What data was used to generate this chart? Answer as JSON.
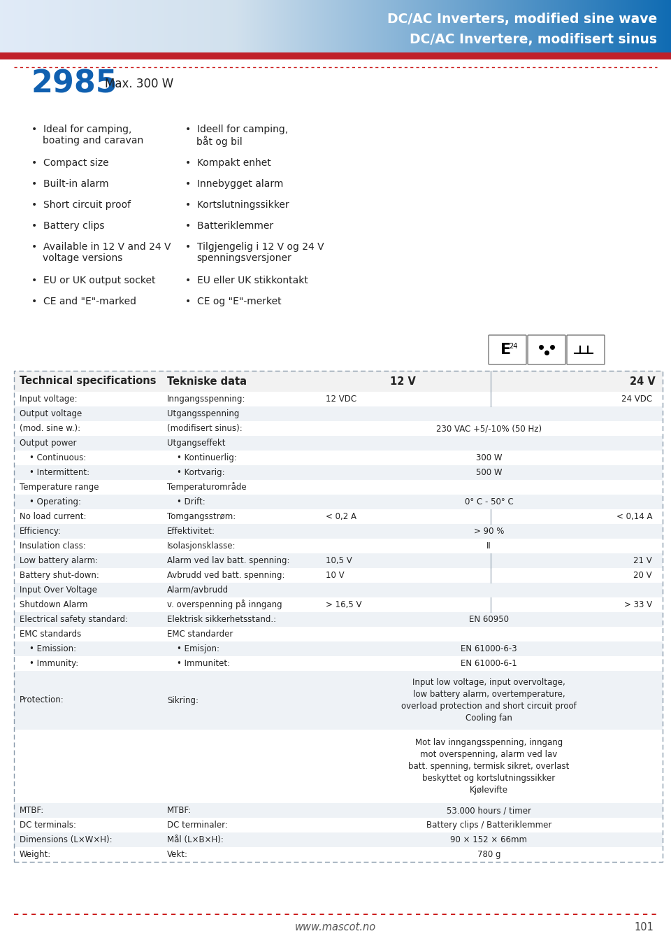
{
  "header_title1": "DC/AC Inverters, modified sine wave",
  "header_title2": "DC/AC Invertere, modifisert sinus",
  "product_number": "2985",
  "product_subtitle": "Max. 300 W",
  "bullets_en": [
    [
      "Ideal for camping,",
      "boating and caravan"
    ],
    [
      "Compact size"
    ],
    [
      "Built-in alarm"
    ],
    [
      "Short circuit proof"
    ],
    [
      "Battery clips"
    ],
    [
      "Available in 12 V and 24 V",
      "voltage versions"
    ],
    [
      "EU or UK output socket"
    ],
    [
      "CE and \"E\"-marked"
    ]
  ],
  "bullets_no": [
    [
      "Ideell for camping,",
      "båt og bil"
    ],
    [
      "Kompakt enhet"
    ],
    [
      "Innebygget alarm"
    ],
    [
      "Kortslutningssikker"
    ],
    [
      "Batteriklemmer"
    ],
    [
      "Tilgjengelig i 12 V og 24 V",
      "spenningsversjoner"
    ],
    [
      "EU eller UK stikkontakt"
    ],
    [
      "CE og \"E\"-merket"
    ]
  ],
  "table_header": [
    "Technical specifications",
    "Tekniske data",
    "12 V",
    "24 V"
  ],
  "table_rows": [
    [
      "Input voltage:",
      "Inngangsspenning:",
      "12 VDC",
      "24 VDC",
      "split"
    ],
    [
      "Output voltage",
      "Utgangsspenning",
      "",
      "",
      "empty"
    ],
    [
      "(mod. sine w.):",
      "(modifisert sinus):",
      "230 VAC +5/-10% (50 Hz)",
      "",
      "center"
    ],
    [
      "Output power",
      "Utgangseffekt",
      "",
      "",
      "empty"
    ],
    [
      "• Continuous:",
      "• Kontinuerlig:",
      "300 W",
      "",
      "center"
    ],
    [
      "• Intermittent:",
      "• Kortvarig:",
      "500 W",
      "",
      "center"
    ],
    [
      "Temperature range",
      "Temperaturområde",
      "",
      "",
      "empty"
    ],
    [
      "• Operating:",
      "• Drift:",
      "0° C - 50° C",
      "",
      "center"
    ],
    [
      "No load current:",
      "Tomgangsstrøm:",
      "< 0,2 A",
      "< 0,14 A",
      "split"
    ],
    [
      "Efficiency:",
      "Effektivitet:",
      "> 90 %",
      "",
      "center"
    ],
    [
      "Insulation class:",
      "Isolasjonsklasse:",
      "II",
      "",
      "center"
    ],
    [
      "Low battery alarm:",
      "Alarm ved lav batt. spenning:",
      "10,5 V",
      "21 V",
      "split"
    ],
    [
      "Battery shut-down:",
      "Avbrudd ved batt. spenning:",
      "10 V",
      "20 V",
      "split"
    ],
    [
      "Input Over Voltage",
      "Alarm/avbrudd",
      "",
      "",
      "empty"
    ],
    [
      "Shutdown Alarm",
      "v. overspenning på inngang",
      "> 16,5 V",
      "> 33 V",
      "split"
    ],
    [
      "Electrical safety standard:",
      "Elektrisk sikkerhetsstand.:",
      "EN 60950",
      "",
      "center"
    ],
    [
      "EMC standards",
      "EMC standarder",
      "",
      "",
      "empty"
    ],
    [
      "• Emission:",
      "• Emisjon:",
      "EN 61000-6-3",
      "",
      "center"
    ],
    [
      "• Immunity:",
      "• Immunitet:",
      "EN 61000-6-1",
      "",
      "center"
    ],
    [
      "Protection:",
      "Sikring:",
      "Input low voltage, input overvoltage,\nlow battery alarm, overtemperature,\noverload protection and short circuit proof\nCooling fan",
      "",
      "center_multi"
    ],
    [
      "",
      "",
      "Mot lav inngangsspenning, inngang\nmot overspenning, alarm ved lav\nbatt. spenning, termisk sikret, overlast\nbeskyttet og kortslutningssikker\nKjølevifte",
      "",
      "center_multi"
    ],
    [
      "MTBF:",
      "MTBF:",
      "53.000 hours / timer",
      "",
      "center"
    ],
    [
      "DC terminals:",
      "DC terminaler:",
      "Battery clips / Batteriklemmer",
      "",
      "center"
    ],
    [
      "Dimensions (L×W×H):",
      "Mål (L×B×H):",
      "90 × 152 × 66mm",
      "",
      "center"
    ],
    [
      "Weight:",
      "Vekt:",
      "780 g",
      "",
      "center"
    ]
  ],
  "footer_url": "www.mascot.no",
  "footer_page": "101",
  "bg_color": "#ffffff",
  "header_red_stripe": "#c0202a",
  "table_border_color": "#8899aa",
  "table_row_alt_bg": "#eef2f6",
  "table_row_bg": "#ffffff",
  "text_color": "#222222",
  "product_num_color": "#1060b0",
  "header_text_color": "#ffffff"
}
